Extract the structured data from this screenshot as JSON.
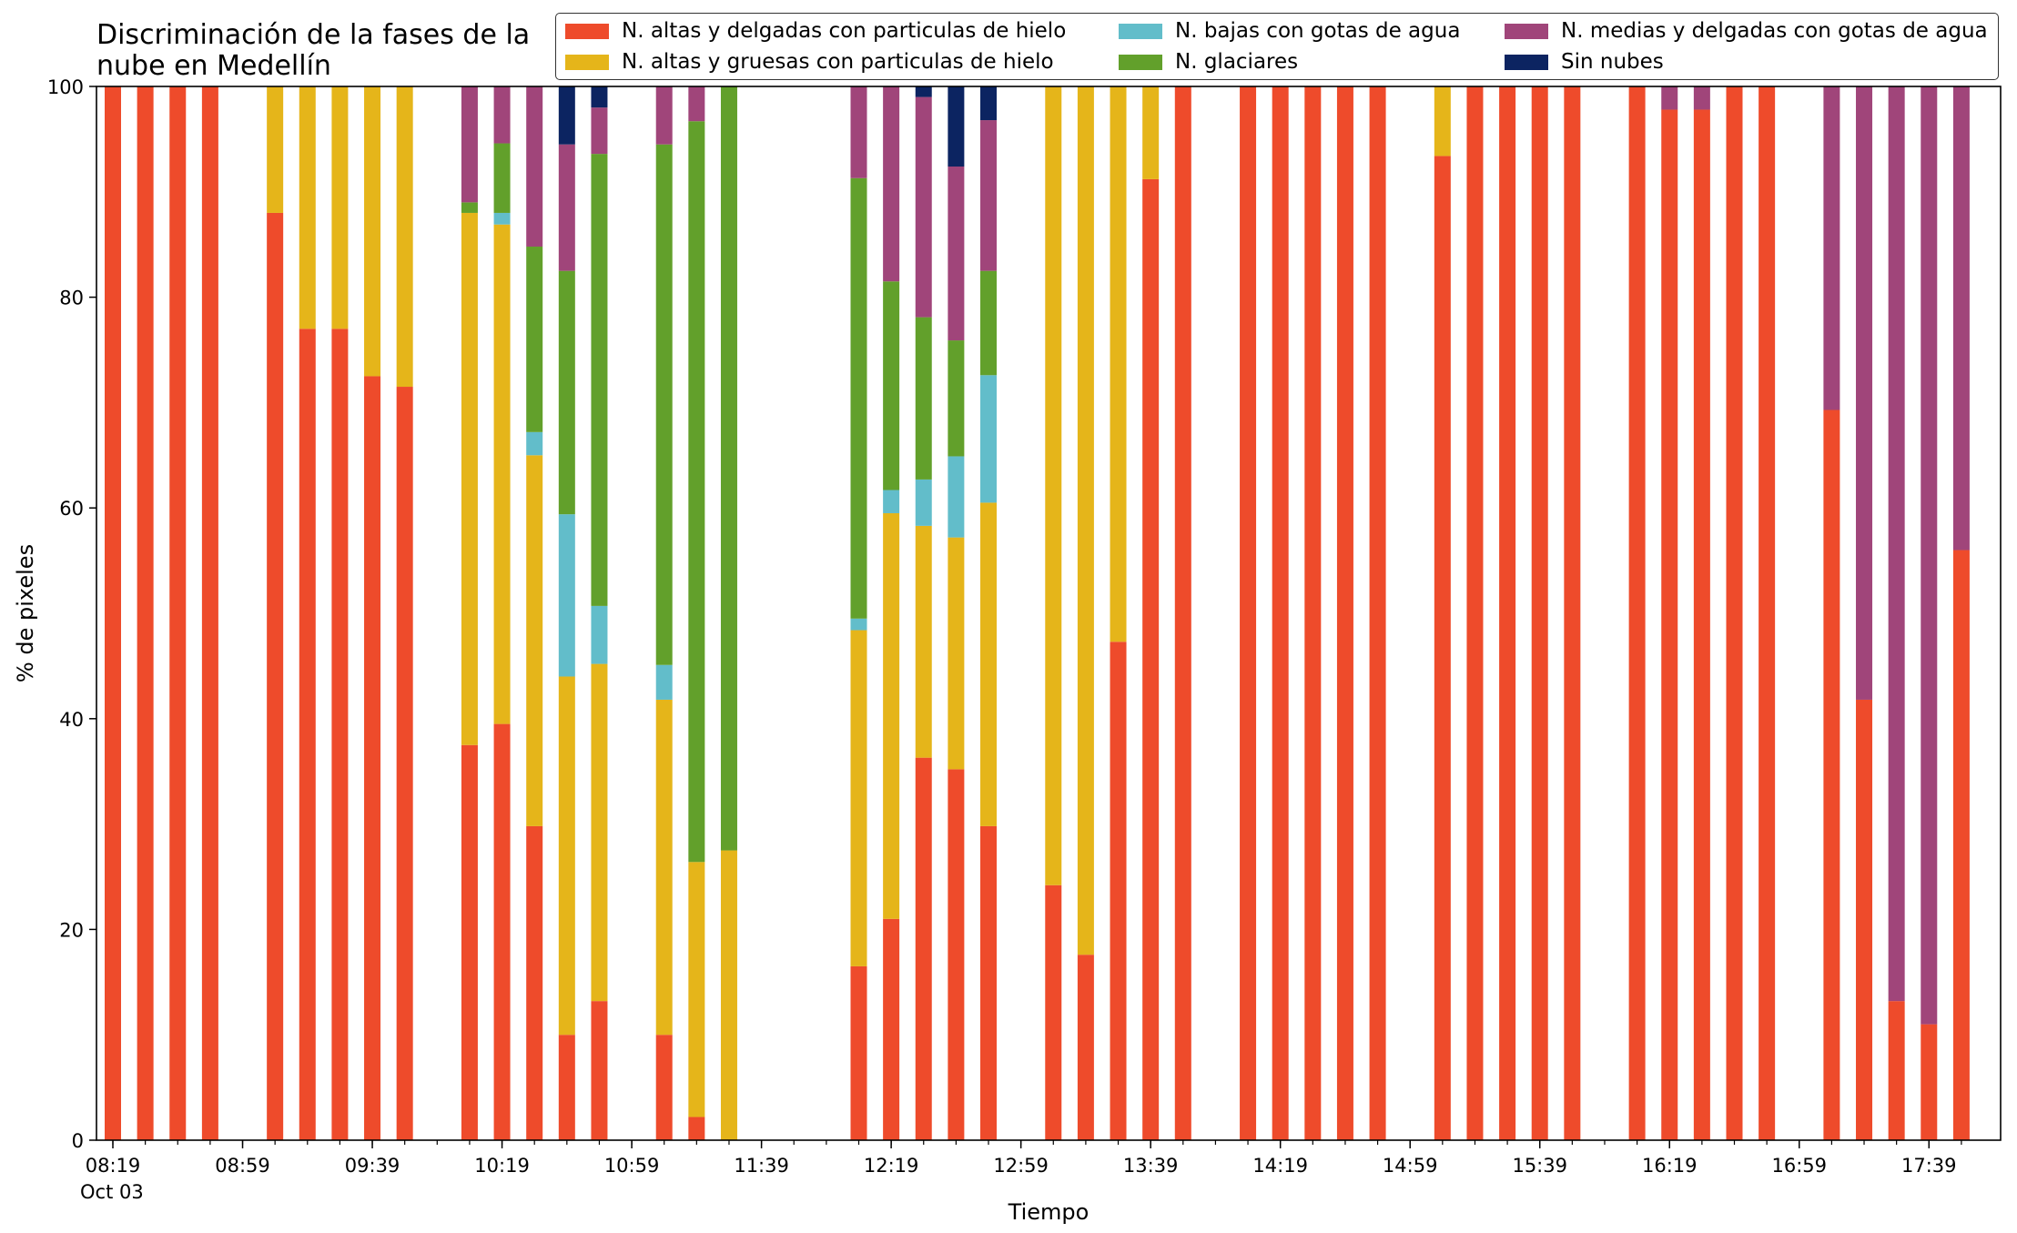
{
  "chart_data": {
    "type": "bar",
    "stacked": true,
    "title": "Discriminación de la fases de la\nnube en Medellín",
    "xlabel": "Tiempo",
    "ylabel": "% de pixeles",
    "ylim": [
      0,
      100
    ],
    "yticks": [
      "0",
      "20",
      "40",
      "60",
      "80",
      "100"
    ],
    "xticks": [
      "08:19",
      "08:59",
      "09:39",
      "10:19",
      "10:59",
      "11:39",
      "12:19",
      "12:59",
      "13:39",
      "14:19",
      "14:59",
      "15:39",
      "16:19",
      "16:59",
      "17:39"
    ],
    "x_sublabel": "Oct 03",
    "legend_position": "top-right",
    "grid": false,
    "categories": [
      "08:19",
      "08:29",
      "08:39",
      "08:49",
      "08:59",
      "09:09",
      "09:19",
      "09:29",
      "09:39",
      "09:49",
      "09:59",
      "10:09",
      "10:19",
      "10:29",
      "10:39",
      "10:49",
      "10:59",
      "11:09",
      "11:19",
      "11:29",
      "11:39",
      "11:49",
      "11:59",
      "12:09",
      "12:19",
      "12:29",
      "12:39",
      "12:49",
      "12:59",
      "13:09",
      "13:19",
      "13:29",
      "13:39",
      "13:49",
      "13:59",
      "14:09",
      "14:19",
      "14:29",
      "14:39",
      "14:49",
      "14:59",
      "15:09",
      "15:19",
      "15:29",
      "15:39",
      "15:49",
      "15:59",
      "16:09",
      "16:19",
      "16:29",
      "16:39",
      "16:49",
      "16:59",
      "17:09",
      "17:19",
      "17:29",
      "17:39",
      "17:49"
    ],
    "series": [
      {
        "name": "N. altas y delgadas con particulas de hielo",
        "color": "#ee4b2b",
        "values": [
          100,
          100,
          100,
          100,
          null,
          88,
          77,
          77,
          72.5,
          71.5,
          null,
          37.5,
          39.5,
          29.8,
          10,
          13.2,
          null,
          10,
          2.2,
          0,
          null,
          null,
          null,
          16.5,
          21,
          36.3,
          35.2,
          29.8,
          null,
          24.2,
          17.6,
          47.3,
          91.2,
          100,
          null,
          100,
          100,
          100,
          100,
          100,
          null,
          93.4,
          100,
          100,
          100,
          100,
          null,
          100,
          97.8,
          97.8,
          100,
          100,
          null,
          69.3,
          41.8,
          13.2,
          11,
          56
        ]
      },
      {
        "name": "N. altas y gruesas con particulas de hielo",
        "color": "#e5b51a",
        "values": [
          0,
          0,
          0,
          0,
          null,
          12,
          23,
          23,
          27.5,
          28.5,
          null,
          50.5,
          47.4,
          35.2,
          34,
          32,
          null,
          31.8,
          24.2,
          27.5,
          null,
          null,
          null,
          31.9,
          38.5,
          22,
          22,
          30.7,
          null,
          75.8,
          82.4,
          52.7,
          8.8,
          0,
          null,
          0,
          0,
          0,
          0,
          0,
          null,
          6.6,
          0,
          0,
          0,
          0,
          null,
          0,
          0,
          0,
          0,
          0,
          null,
          0,
          0,
          0,
          0,
          0
        ]
      },
      {
        "name": "N. bajas con gotas de agua",
        "color": "#62bdca",
        "values": [
          0,
          0,
          0,
          0,
          null,
          0,
          0,
          0,
          0,
          0,
          null,
          0,
          1.1,
          2.2,
          15.4,
          5.5,
          null,
          3.3,
          0,
          0,
          null,
          null,
          null,
          1.1,
          2.2,
          4.4,
          7.7,
          12.1,
          null,
          0,
          0,
          0,
          0,
          0,
          null,
          0,
          0,
          0,
          0,
          0,
          null,
          0,
          0,
          0,
          0,
          0,
          null,
          0,
          0,
          0,
          0,
          0,
          null,
          0,
          0,
          0,
          0,
          0
        ]
      },
      {
        "name": "N. glaciares",
        "color": "#62a02b",
        "values": [
          0,
          0,
          0,
          0,
          null,
          0,
          0,
          0,
          0,
          0,
          null,
          1,
          6.6,
          17.6,
          23.1,
          42.9,
          null,
          49.4,
          70.3,
          72.5,
          null,
          null,
          null,
          41.8,
          19.8,
          15.4,
          11,
          9.9,
          null,
          0,
          0,
          0,
          0,
          0,
          null,
          0,
          0,
          0,
          0,
          0,
          null,
          0,
          0,
          0,
          0,
          0,
          null,
          0,
          0,
          0,
          0,
          0,
          null,
          0,
          0,
          0,
          0,
          0
        ]
      },
      {
        "name": "N. medias y delgadas con gotas de agua",
        "color": "#a0457a",
        "values": [
          0,
          0,
          0,
          0,
          null,
          0,
          0,
          0,
          0,
          0,
          null,
          11,
          5.4,
          15.2,
          12,
          4.4,
          null,
          5.5,
          3.3,
          0,
          null,
          null,
          null,
          8.7,
          18.5,
          20.9,
          16.5,
          14.3,
          null,
          0,
          0,
          0,
          0,
          0,
          null,
          0,
          0,
          0,
          0,
          0,
          null,
          0,
          0,
          0,
          0,
          0,
          null,
          0,
          2.2,
          2.2,
          0,
          0,
          null,
          30.7,
          58.2,
          86.8,
          89,
          44
        ]
      },
      {
        "name": "Sin nubes",
        "color": "#0c2461",
        "values": [
          0,
          0,
          0,
          0,
          null,
          0,
          0,
          0,
          0,
          0,
          null,
          0,
          0,
          0,
          5.5,
          2,
          null,
          0,
          0,
          0,
          null,
          null,
          null,
          0,
          0,
          1,
          7.6,
          3.2,
          null,
          0,
          0,
          0,
          0,
          0,
          null,
          0,
          0,
          0,
          0,
          0,
          null,
          0,
          0,
          0,
          0,
          0,
          null,
          0,
          0,
          0,
          0,
          0,
          null,
          0,
          0,
          0,
          0,
          0
        ]
      }
    ]
  }
}
